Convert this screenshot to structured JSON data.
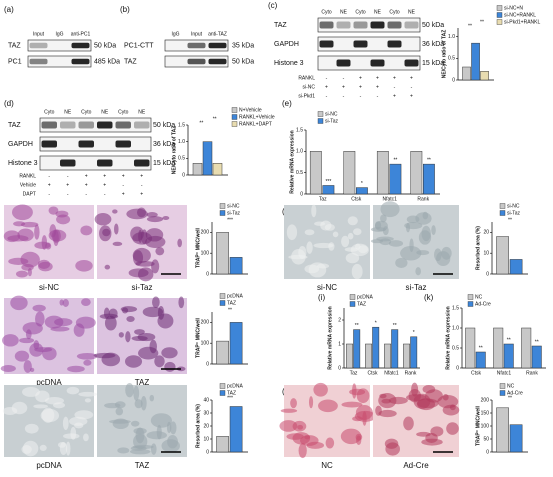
{
  "panels": [
    "(a)",
    "(b)",
    "(c)",
    "(d)",
    "(e)",
    "(f)",
    "(g)",
    "(h)",
    "(i)",
    "(j)",
    "(k)",
    "(l)"
  ],
  "blots": [
    {
      "lanes": [
        "Input",
        "IgG",
        "anti-PC1"
      ],
      "rows": [
        {
          "name": "TAZ",
          "size": "50 kDa"
        },
        {
          "name": "PC1",
          "size": "485 kDa"
        }
      ]
    },
    {
      "lanes": [
        "IgG",
        "Input",
        "anti-TAZ"
      ],
      "rows": [
        {
          "name": "PC1-CTT",
          "size": "35 kDa"
        },
        {
          "name": "TAZ",
          "size": "50 kDa"
        }
      ]
    },
    {
      "lanes": [
        "Cyto",
        "NE",
        "Cyto",
        "NE",
        "Cyto",
        "NE"
      ],
      "rows": [
        {
          "name": "TAZ",
          "size": "50 kDa"
        },
        {
          "name": "GAPDH",
          "size": "36 kDa"
        },
        {
          "name": "Histone 3",
          "size": "15 kDa"
        }
      ],
      "treatments": [
        {
          "name": "RANKL",
          "signs": [
            "-",
            "-",
            "+",
            "+",
            "+",
            "+"
          ]
        },
        {
          "name": "si-NC",
          "signs": [
            "+",
            "+",
            "+",
            "+",
            "-",
            "-"
          ]
        },
        {
          "name": "si-Pkd1",
          "signs": [
            "-",
            "-",
            "-",
            "-",
            "+",
            "+"
          ]
        }
      ]
    },
    {
      "lanes": [
        "Cyto",
        "NE",
        "Cyto",
        "NE",
        "Cyto",
        "NE"
      ],
      "rows": [
        {
          "name": "TAZ",
          "size": "50 kDa"
        },
        {
          "name": "GAPDH",
          "size": "36 kDa"
        },
        {
          "name": "Histone 3",
          "size": "15 kDa"
        }
      ],
      "treatments": [
        {
          "name": "RANKL",
          "signs": [
            "-",
            "-",
            "+",
            "+",
            "+",
            "+"
          ]
        },
        {
          "name": "Vehicle",
          "signs": [
            "+",
            "+",
            "+",
            "+",
            "-",
            "-"
          ]
        },
        {
          "name": "DAPT",
          "signs": [
            "-",
            "-",
            "-",
            "-",
            "+",
            "+"
          ]
        }
      ]
    }
  ],
  "micrographs": [
    {
      "captions": [
        "si-NC",
        "si-Taz"
      ]
    },
    {
      "captions": [
        "si-NC",
        "si-Taz"
      ]
    },
    {
      "captions": [
        "pcDNA",
        "TAZ"
      ]
    },
    {
      "captions": [
        "pcDNA",
        "TAZ"
      ]
    },
    {
      "captions": [
        "NC",
        "Ad-Cre"
      ]
    }
  ],
  "chart_data": [
    {
      "type": "bar",
      "ylabel": "NE/Cyto ratio of TAZ",
      "categories": [
        null
      ],
      "ylim": [
        0,
        1.2
      ],
      "yticks": [
        0,
        0.5,
        {
          "value": 1,
          "label": "1.0"
        }
      ],
      "series": [
        {
          "name": "si-NC+N",
          "color": "#c8c8c8",
          "values": [
            0.3
          ]
        },
        {
          "name": "si-NC+RANKL",
          "color": "#3d85d8",
          "values": [
            0.85
          ]
        },
        {
          "name": "si-Pkd1+RANKL",
          "color": "#e8dcb0",
          "values": [
            0.2
          ]
        }
      ],
      "annotations": [
        "**",
        "**"
      ]
    },
    {
      "type": "bar",
      "ylabel": "NE/Cyto ratio of TAZ",
      "categories": [
        null
      ],
      "ylim": [
        0,
        1.5
      ],
      "yticks": [
        0,
        0.5,
        {
          "value": 1,
          "label": "1.0"
        },
        1.5
      ],
      "series": [
        {
          "name": "N+Vehicle",
          "color": "#c8c8c8",
          "values": [
            0.35
          ]
        },
        {
          "name": "RANKL+Vehicle",
          "color": "#3d85d8",
          "values": [
            1.0
          ]
        },
        {
          "name": "RANKL+DAPT",
          "color": "#e8dcb0",
          "values": [
            0.35
          ]
        }
      ],
      "annotations": [
        "**",
        "**"
      ]
    },
    {
      "type": "bar",
      "ylabel": "Relative mRNA expression",
      "categories": [
        "Taz",
        "Ctsk",
        "Nfatc1",
        "Rank"
      ],
      "ylim": [
        0,
        1.5
      ],
      "yticks": [
        0,
        0.5,
        {
          "value": 1,
          "label": "1.0"
        },
        1.5
      ],
      "series": [
        {
          "name": "si-NC",
          "color": "#c8c8c8",
          "values": [
            1,
            1,
            1,
            1
          ]
        },
        {
          "name": "si-Taz",
          "color": "#3d85d8",
          "values": [
            0.2,
            0.15,
            0.7,
            0.7
          ]
        }
      ],
      "annotations": [
        "***",
        "*",
        "**",
        "**"
      ]
    },
    {
      "type": "bar",
      "ylabel": "TRAP⁺ MNC/well",
      "categories": [
        null
      ],
      "ylim": [
        0,
        250
      ],
      "yticks": [
        0,
        100,
        200
      ],
      "series": [
        {
          "name": "si-NC",
          "color": "#c8c8c8",
          "values": [
            200
          ]
        },
        {
          "name": "si-Taz",
          "color": "#3d85d8",
          "values": [
            80
          ]
        }
      ],
      "annotations": [
        "***"
      ]
    },
    {
      "type": "bar",
      "ylabel": "Resorbed area (%)",
      "categories": [
        null
      ],
      "ylim": [
        0,
        25
      ],
      "yticks": [
        0,
        10,
        20
      ],
      "series": [
        {
          "name": "si-NC",
          "color": "#c8c8c8",
          "values": [
            18
          ]
        },
        {
          "name": "si-Taz",
          "color": "#3d85d8",
          "values": [
            7
          ]
        }
      ],
      "annotations": [
        "**"
      ]
    },
    {
      "type": "bar",
      "ylabel": "TRAP⁺ MNC/well",
      "categories": [
        null
      ],
      "ylim": [
        0,
        250
      ],
      "yticks": [
        0,
        100,
        200
      ],
      "series": [
        {
          "name": "pcDNA",
          "color": "#c8c8c8",
          "values": [
            110
          ]
        },
        {
          "name": "TAZ",
          "color": "#3d85d8",
          "values": [
            200
          ]
        }
      ],
      "annotations": [
        "**"
      ]
    },
    {
      "type": "bar",
      "ylabel": "Relative mRNA expression",
      "categories": [
        "Taz",
        "Ctsk",
        "Nfatc1",
        "Rank"
      ],
      "ylim": [
        0,
        2.5
      ],
      "yticks": [
        0,
        1,
        2
      ],
      "series": [
        {
          "name": "pcDNA",
          "color": "#c8c8c8",
          "values": [
            1,
            1,
            1,
            1
          ]
        },
        {
          "name": "TAZ",
          "color": "#3d85d8",
          "values": [
            1.6,
            1.7,
            1.6,
            1.3
          ]
        }
      ],
      "annotations": [
        "**",
        "*",
        "**",
        "*"
      ]
    },
    {
      "type": "bar",
      "ylabel": "Resorbed area (%)",
      "categories": [
        null
      ],
      "ylim": [
        0,
        40
      ],
      "yticks": [
        0,
        10,
        20,
        30,
        40
      ],
      "series": [
        {
          "name": "pcDNA",
          "color": "#c8c8c8",
          "values": [
            12
          ]
        },
        {
          "name": "TAZ",
          "color": "#3d85d8",
          "values": [
            35
          ]
        }
      ],
      "annotations": [
        "***"
      ]
    },
    {
      "type": "bar",
      "ylabel": "Relative mRNA expression",
      "categories": [
        "Ctsk",
        "Nfatc1",
        "Rank"
      ],
      "ylim": [
        0,
        1.5
      ],
      "yticks": [
        0,
        0.5,
        {
          "value": 1,
          "label": "1.0"
        },
        1.5
      ],
      "series": [
        {
          "name": "NC",
          "color": "#c8c8c8",
          "values": [
            1,
            1,
            1
          ]
        },
        {
          "name": "Ad-Cre",
          "color": "#3d85d8",
          "values": [
            0.4,
            0.6,
            0.55
          ]
        }
      ],
      "annotations": [
        "**",
        "**",
        "**"
      ]
    },
    {
      "type": "bar",
      "ylabel": "TRAP⁺ MNC/well",
      "categories": [
        null
      ],
      "ylim": [
        0,
        200
      ],
      "yticks": [
        0,
        50,
        100,
        150,
        200
      ],
      "series": [
        {
          "name": "NC",
          "color": "#c8c8c8",
          "values": [
            170
          ]
        },
        {
          "name": "Ad-Cre",
          "color": "#3d85d8",
          "values": [
            105
          ]
        }
      ],
      "annotations": [
        "**"
      ]
    }
  ]
}
